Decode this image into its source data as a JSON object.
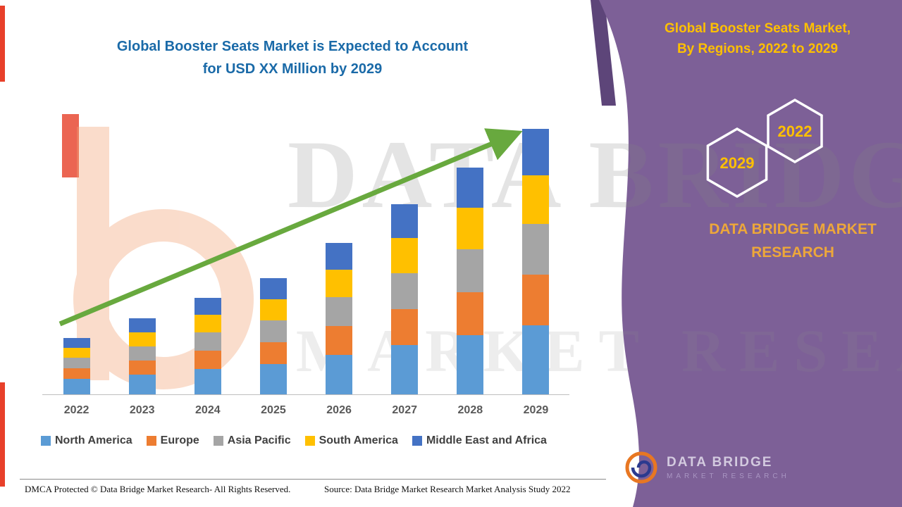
{
  "title": {
    "line1": "Global Booster Seats Market is Expected to Account",
    "line2": "for USD XX Million by 2029"
  },
  "panel": {
    "title_line1": "Global Booster Seats Market,",
    "title_line2": "By Regions, 2022 to 2029",
    "hex_left_label": "2029",
    "hex_right_label": "2022",
    "brand_line1": "DATA BRIDGE MARKET",
    "brand_line2": "RESEARCH",
    "bg_color": "#7d6097",
    "accent_color": "#ffc000"
  },
  "watermark": {
    "line1": "DATA BRIDGE",
    "line2": "MARKET RESEARCH"
  },
  "logo": {
    "line1": "DATA BRIDGE",
    "line2": "MARKET RESEARCH"
  },
  "footer": {
    "dmca": "DMCA Protected © Data Bridge Market Research- All Rights Reserved.",
    "source": "Source: Data Bridge Market Research Market Analysis Study 2022"
  },
  "chart_data": {
    "type": "bar",
    "stacked": true,
    "title": "Global Booster Seats Market is Expected to Account for USD XX Million by 2029",
    "xlabel": "",
    "ylabel": "",
    "categories": [
      "2022",
      "2023",
      "2024",
      "2025",
      "2026",
      "2027",
      "2028",
      "2029"
    ],
    "series": [
      {
        "name": "North America",
        "color": "#5b9bd5",
        "values": [
          22,
          28,
          36,
          43,
          56,
          70,
          84,
          98
        ]
      },
      {
        "name": "Europe",
        "color": "#ed7d31",
        "values": [
          15,
          20,
          26,
          31,
          41,
          51,
          61,
          72
        ]
      },
      {
        "name": "Asia Pacific",
        "color": "#a5a5a5",
        "values": [
          15,
          20,
          26,
          31,
          41,
          51,
          61,
          72
        ]
      },
      {
        "name": "South America",
        "color": "#ffc000",
        "values": [
          14,
          20,
          25,
          30,
          39,
          50,
          59,
          69
        ]
      },
      {
        "name": "Middle East and Africa",
        "color": "#4472c4",
        "values": [
          14,
          20,
          24,
          30,
          38,
          48,
          57,
          66
        ]
      }
    ],
    "ylim": [
      0,
      400
    ],
    "grid": false,
    "legend_position": "bottom",
    "note": "Y-axis is unlabeled in the source image; segment values are relative units estimated from bar heights.",
    "annotations": [
      "green upward trend arrow from 2022 to 2029"
    ]
  }
}
